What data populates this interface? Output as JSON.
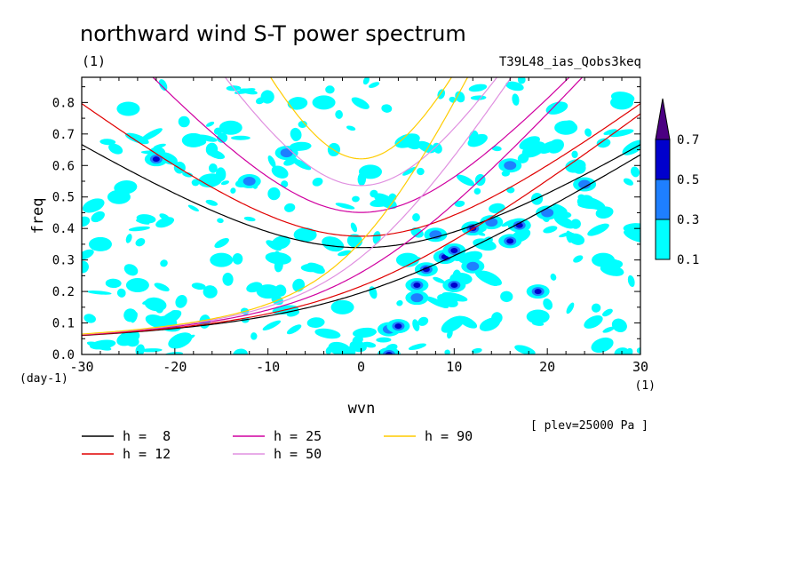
{
  "chart_data": {
    "type": "heatmap",
    "title": "northward wind S-T power spectrum",
    "subtitle_left": "(1)",
    "subtitle_right": "T39L48_ias_Qobs3keq",
    "xlabel": "wvn",
    "ylabel": "freq",
    "x_unit_left": "(day-1)",
    "x_unit_right": "(1)",
    "annotation": "[ plev=25000 Pa ]",
    "xlim": [
      -30,
      30
    ],
    "ylim": [
      0,
      0.88
    ],
    "xticks": [
      -30,
      -20,
      -10,
      0,
      10,
      20,
      30
    ],
    "xtick_labels": [
      "-30",
      "-20",
      "-10",
      "0",
      "10",
      "20",
      "30"
    ],
    "yticks": [
      0.0,
      0.1,
      0.2,
      0.3,
      0.4,
      0.5,
      0.6,
      0.7,
      0.8
    ],
    "ytick_labels": [
      "0.0",
      "0.1",
      "0.2",
      "0.3",
      "0.4",
      "0.5",
      "0.6",
      "0.7",
      "0.8"
    ],
    "colorbar": {
      "levels": [
        "0.1",
        "0.3",
        "0.5",
        "0.7"
      ],
      "colors": [
        "#00ffff",
        "#1e7fff",
        "#0000cc",
        "#4b0082"
      ]
    },
    "dispersion_curves": [
      {
        "label": "h =  8",
        "color": "#000000"
      },
      {
        "label": "h = 12",
        "color": "#e00000"
      },
      {
        "label": "h = 25",
        "color": "#d000a0"
      },
      {
        "label": "h = 50",
        "color": "#e090e0"
      },
      {
        "label": "h = 90",
        "color": "#ffcc00"
      }
    ],
    "power_blobs": [
      {
        "k": -25,
        "f": 0.78,
        "v": 0.2
      },
      {
        "k": -22,
        "f": 0.62,
        "v": 0.55
      },
      {
        "k": -26,
        "f": 0.5,
        "v": 0.2
      },
      {
        "k": -28,
        "f": 0.35,
        "v": 0.2
      },
      {
        "k": -24,
        "f": 0.22,
        "v": 0.25
      },
      {
        "k": -21,
        "f": 0.1,
        "v": 0.2
      },
      {
        "k": -18,
        "f": 0.68,
        "v": 0.2
      },
      {
        "k": -15,
        "f": 0.3,
        "v": 0.2
      },
      {
        "k": -14,
        "f": 0.72,
        "v": 0.2
      },
      {
        "k": -12,
        "f": 0.55,
        "v": 0.35
      },
      {
        "k": -10,
        "f": 0.2,
        "v": 0.2
      },
      {
        "k": -8,
        "f": 0.64,
        "v": 0.45
      },
      {
        "k": -6,
        "f": 0.38,
        "v": 0.2
      },
      {
        "k": -4,
        "f": 0.8,
        "v": 0.25
      },
      {
        "k": -2,
        "f": 0.15,
        "v": 0.2
      },
      {
        "k": 1,
        "f": 0.58,
        "v": 0.2
      },
      {
        "k": 3,
        "f": 0.08,
        "v": 0.3
      },
      {
        "k": 3,
        "f": 0.0,
        "v": 0.6
      },
      {
        "k": 4,
        "f": 0.09,
        "v": 0.55
      },
      {
        "k": 5,
        "f": 0.3,
        "v": 0.2
      },
      {
        "k": 6,
        "f": 0.18,
        "v": 0.45
      },
      {
        "k": 6,
        "f": 0.22,
        "v": 0.65
      },
      {
        "k": 7,
        "f": 0.27,
        "v": 0.55
      },
      {
        "k": 8,
        "f": 0.38,
        "v": 0.45
      },
      {
        "k": 9,
        "f": 0.31,
        "v": 0.5
      },
      {
        "k": 10,
        "f": 0.33,
        "v": 0.55
      },
      {
        "k": 10,
        "f": 0.22,
        "v": 0.6
      },
      {
        "k": 12,
        "f": 0.4,
        "v": 0.75
      },
      {
        "k": 12,
        "f": 0.28,
        "v": 0.4
      },
      {
        "k": 14,
        "f": 0.42,
        "v": 0.35
      },
      {
        "k": 16,
        "f": 0.36,
        "v": 0.55
      },
      {
        "k": 16,
        "f": 0.6,
        "v": 0.3
      },
      {
        "k": 17,
        "f": 0.41,
        "v": 0.65
      },
      {
        "k": 19,
        "f": 0.2,
        "v": 0.55
      },
      {
        "k": 19,
        "f": 0.12,
        "v": 0.2
      },
      {
        "k": 20,
        "f": 0.45,
        "v": 0.35
      },
      {
        "k": 22,
        "f": 0.72,
        "v": 0.2
      },
      {
        "k": 24,
        "f": 0.54,
        "v": 0.45
      },
      {
        "k": 26,
        "f": 0.3,
        "v": 0.2
      },
      {
        "k": 28,
        "f": 0.8,
        "v": 0.25
      }
    ]
  }
}
